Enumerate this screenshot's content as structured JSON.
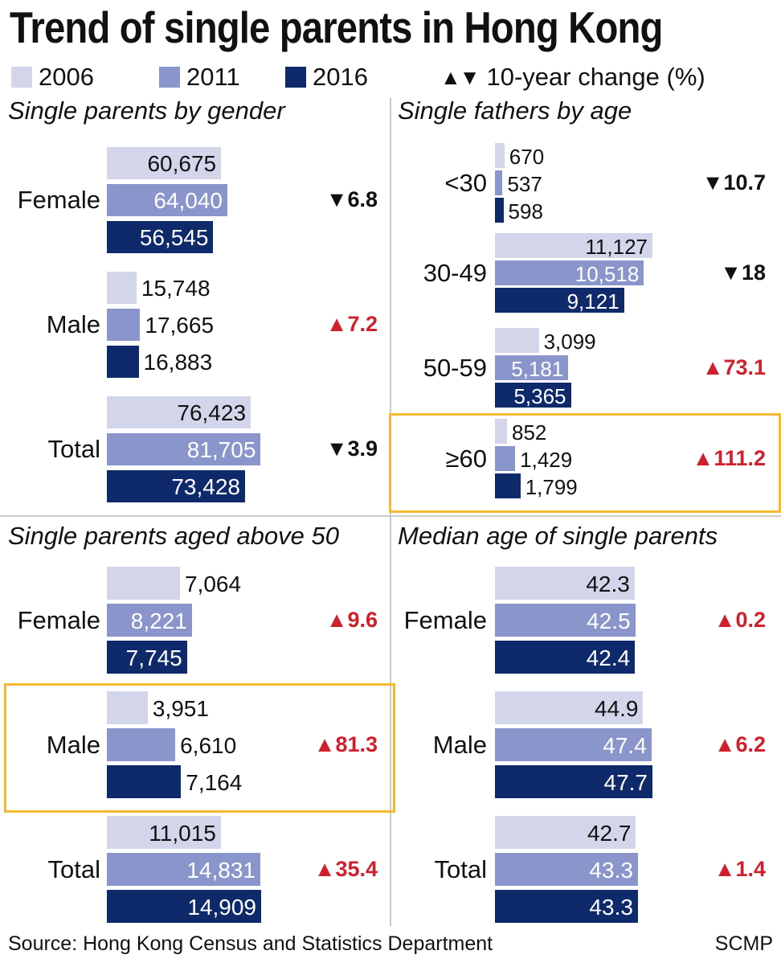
{
  "title": "Trend of single parents in Hong Kong",
  "legend": {
    "items": [
      {
        "label": "2006",
        "color": "#d3d6ea"
      },
      {
        "label": "2011",
        "color": "#8995cb"
      },
      {
        "label": "2016",
        "color": "#0f2a6b"
      }
    ],
    "change_label": "10-year change (%)",
    "up_color": "#d0202e",
    "down_color": "#111111",
    "highlight_color": "#f5b82e"
  },
  "chart_data": [
    {
      "type": "bar",
      "title": "Single parents by gender",
      "categories": [
        "Female",
        "Male",
        "Total"
      ],
      "series": [
        {
          "name": "2006",
          "values": [
            60675,
            15748,
            76423
          ],
          "labels": [
            "60,675",
            "15,748",
            "76,423"
          ]
        },
        {
          "name": "2011",
          "values": [
            64040,
            17665,
            81705
          ],
          "labels": [
            "64,040",
            "17,665",
            "81,705"
          ]
        },
        {
          "name": "2016",
          "values": [
            56545,
            16883,
            73428
          ],
          "labels": [
            "56,545",
            "16,883",
            "73,428"
          ]
        }
      ],
      "change": [
        {
          "dir": "down",
          "text": "6.8"
        },
        {
          "dir": "up",
          "text": "7.2"
        },
        {
          "dir": "down",
          "text": "3.9"
        }
      ],
      "highlighted": []
    },
    {
      "type": "bar",
      "title": "Single fathers by age",
      "categories": [
        "<30",
        "30-49",
        "50-59",
        "≥60"
      ],
      "series": [
        {
          "name": "2006",
          "values": [
            670,
            11127,
            3099,
            852
          ],
          "labels": [
            "670",
            "11,127",
            "3,099",
            "852"
          ]
        },
        {
          "name": "2011",
          "values": [
            537,
            10518,
            5181,
            1429
          ],
          "labels": [
            "537",
            "10,518",
            "5,181",
            "1,429"
          ]
        },
        {
          "name": "2016",
          "values": [
            598,
            9121,
            5365,
            1799
          ],
          "labels": [
            "598",
            "9,121",
            "5,365",
            "1,799"
          ]
        }
      ],
      "change": [
        {
          "dir": "down",
          "text": "10.7"
        },
        {
          "dir": "down",
          "text": "18"
        },
        {
          "dir": "up",
          "text": "73.1"
        },
        {
          "dir": "up",
          "text": "111.2"
        }
      ],
      "highlighted": [
        "≥60"
      ]
    },
    {
      "type": "bar",
      "title": "Single parents aged above 50",
      "categories": [
        "Female",
        "Male",
        "Total"
      ],
      "series": [
        {
          "name": "2006",
          "values": [
            7064,
            3951,
            11015
          ],
          "labels": [
            "7,064",
            "3,951",
            "11,015"
          ]
        },
        {
          "name": "2011",
          "values": [
            8221,
            6610,
            14831
          ],
          "labels": [
            "8,221",
            "6,610",
            "14,831"
          ]
        },
        {
          "name": "2016",
          "values": [
            7745,
            7164,
            14909
          ],
          "labels": [
            "7,745",
            "7,164",
            "14,909"
          ]
        }
      ],
      "change": [
        {
          "dir": "up",
          "text": "9.6"
        },
        {
          "dir": "up",
          "text": "81.3"
        },
        {
          "dir": "up",
          "text": "35.4"
        }
      ],
      "highlighted": [
        "Male"
      ]
    },
    {
      "type": "bar",
      "title": "Median age of single parents",
      "categories": [
        "Female",
        "Male",
        "Total"
      ],
      "series": [
        {
          "name": "2006",
          "values": [
            42.3,
            44.9,
            42.7
          ],
          "labels": [
            "42.3",
            "44.9",
            "42.7"
          ]
        },
        {
          "name": "2011",
          "values": [
            42.5,
            47.4,
            43.3
          ],
          "labels": [
            "42.5",
            "47.4",
            "43.3"
          ]
        },
        {
          "name": "2016",
          "values": [
            42.4,
            47.7,
            43.3
          ],
          "labels": [
            "42.4",
            "47.7",
            "43.3"
          ]
        }
      ],
      "change": [
        {
          "dir": "up",
          "text": "0.2"
        },
        {
          "dir": "up",
          "text": "6.2"
        },
        {
          "dir": "up",
          "text": "1.4"
        }
      ],
      "highlighted": []
    }
  ],
  "footer": {
    "source": "Source: Hong Kong Census and Statistics Department",
    "credit": "SCMP"
  }
}
